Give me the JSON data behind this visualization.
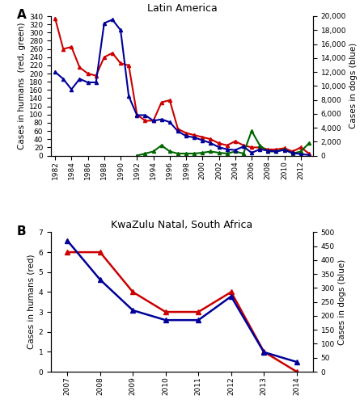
{
  "panel_A": {
    "title": "Latin America",
    "ylabel_left": "Cases in humans  (red, green)",
    "ylabel_right": "Cases in dogs (blue)",
    "ylim_left": [
      0,
      340
    ],
    "ylim_right": [
      0,
      20000
    ],
    "yticks_left": [
      0,
      20,
      40,
      60,
      80,
      100,
      120,
      140,
      160,
      180,
      200,
      220,
      240,
      260,
      280,
      300,
      320,
      340
    ],
    "yticks_right": [
      0,
      2000,
      4000,
      6000,
      8000,
      10000,
      12000,
      14000,
      16000,
      18000,
      20000
    ],
    "years": [
      1982,
      1983,
      1984,
      1985,
      1986,
      1987,
      1988,
      1989,
      1990,
      1991,
      1992,
      1993,
      1994,
      1995,
      1996,
      1997,
      1998,
      1999,
      2000,
      2001,
      2002,
      2003,
      2004,
      2005,
      2006,
      2007,
      2008,
      2009,
      2010,
      2011,
      2012,
      2013
    ],
    "red_humans": [
      335,
      260,
      265,
      215,
      200,
      195,
      240,
      250,
      225,
      220,
      100,
      85,
      85,
      130,
      135,
      65,
      55,
      50,
      45,
      40,
      30,
      25,
      35,
      25,
      20,
      20,
      15,
      15,
      18,
      10,
      20,
      5
    ],
    "green_humans": [
      null,
      null,
      null,
      null,
      null,
      null,
      null,
      null,
      null,
      null,
      0,
      5,
      10,
      25,
      10,
      5,
      5,
      5,
      7,
      10,
      7,
      5,
      10,
      5,
      60,
      25,
      10,
      10,
      15,
      5,
      10,
      30
    ],
    "blue_dogs": [
      12000,
      11000,
      9500,
      11000,
      10500,
      10500,
      19000,
      19500,
      18000,
      8500,
      5800,
      5800,
      5000,
      5200,
      4800,
      3500,
      2800,
      2600,
      2200,
      1800,
      1200,
      900,
      800,
      1300,
      400,
      900,
      700,
      600,
      800,
      400,
      200,
      100
    ],
    "red_color": "#cc0000",
    "green_color": "#006600",
    "blue_color": "#000099",
    "marker": "^",
    "markersize": 3,
    "linewidth": 1.5
  },
  "panel_B": {
    "title": "KwaZulu Natal, South Africa",
    "ylabel_left": "Cases in humans (red)",
    "ylabel_right": "Cases in dogs (blue)",
    "ylim_left": [
      0,
      7
    ],
    "ylim_right": [
      0,
      500
    ],
    "yticks_left": [
      0,
      1,
      2,
      3,
      4,
      5,
      6,
      7
    ],
    "yticks_right": [
      0,
      50,
      100,
      150,
      200,
      250,
      300,
      350,
      400,
      450,
      500
    ],
    "years": [
      2007,
      2008,
      2009,
      2010,
      2011,
      2012,
      2013,
      2014
    ],
    "red_humans": [
      6.0,
      6.0,
      4.0,
      3.0,
      3.0,
      4.0,
      1.0,
      0.0
    ],
    "blue_dogs": [
      470,
      330,
      220,
      185,
      185,
      270,
      70,
      35
    ],
    "red_color": "#cc0000",
    "blue_color": "#000099",
    "marker": "^",
    "markersize": 4,
    "linewidth": 1.8
  },
  "label_A": "A",
  "label_B": "B",
  "label_fontsize": 11,
  "title_fontsize": 9,
  "tick_fontsize": 6.5,
  "axis_label_fontsize": 7.5
}
